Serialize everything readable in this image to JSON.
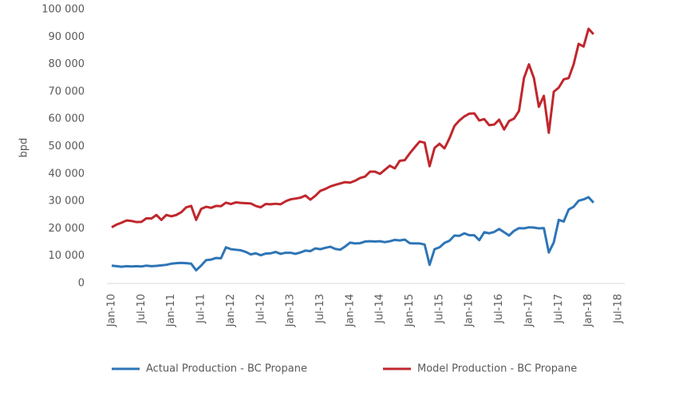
{
  "chart_data": {
    "type": "line",
    "y_label": "bpd",
    "categories": [
      "Jan-10",
      null,
      null,
      null,
      null,
      null,
      "Jul-10",
      null,
      null,
      null,
      null,
      null,
      "Jan-11",
      null,
      null,
      null,
      null,
      null,
      "Jul-11",
      null,
      null,
      null,
      null,
      null,
      "Jan-12",
      null,
      null,
      null,
      null,
      null,
      "Jul-12",
      null,
      null,
      null,
      null,
      null,
      "Jan-13",
      null,
      null,
      null,
      null,
      null,
      "Jul-13",
      null,
      null,
      null,
      null,
      null,
      "Jan-14",
      null,
      null,
      null,
      null,
      null,
      "Jul-14",
      null,
      null,
      null,
      null,
      null,
      "Jan-15",
      null,
      null,
      null,
      null,
      null,
      "Jul-15",
      null,
      null,
      null,
      null,
      null,
      "Jan-16",
      null,
      null,
      null,
      null,
      null,
      "Jul-16",
      null,
      null,
      null,
      null,
      null,
      "Jan-17",
      null,
      null,
      null,
      null,
      null,
      "Jul-17",
      null,
      null,
      null,
      null,
      null,
      "Jan-18",
      null,
      null,
      null,
      null,
      null,
      "Jul-18"
    ],
    "series": [
      {
        "name": "Actual Production - BC Propane",
        "color": "#2e75b6",
        "values": [
          6500,
          6300,
          6100,
          6300,
          6200,
          6300,
          6200,
          6500,
          6300,
          6400,
          6600,
          6800,
          7200,
          7400,
          7500,
          7400,
          7200,
          4800,
          6500,
          8500,
          8700,
          9300,
          9200,
          13200,
          12500,
          12300,
          12100,
          11500,
          10600,
          11000,
          10300,
          10900,
          11000,
          11500,
          10800,
          11200,
          11200,
          10800,
          11300,
          12000,
          11800,
          12800,
          12500,
          13000,
          13400,
          12600,
          12300,
          13500,
          14900,
          14600,
          14700,
          15300,
          15400,
          15300,
          15400,
          15100,
          15400,
          15900,
          15700,
          16000,
          14700,
          14600,
          14600,
          14200,
          6800,
          12500,
          13200,
          14800,
          15600,
          17500,
          17400,
          18300,
          17600,
          17600,
          15800,
          18700,
          18300,
          18800,
          19900,
          18700,
          17500,
          19200,
          20200,
          20100,
          20500,
          20400,
          20100,
          20200,
          11300,
          15000,
          23200,
          22600,
          27000,
          28000,
          30200,
          30700,
          31500,
          29500,
          null,
          null,
          null,
          null,
          null
        ]
      },
      {
        "name": "Model Production - BC Propane",
        "color": "#c0272d",
        "values": [
          20500,
          21500,
          22200,
          23000,
          22800,
          22400,
          22500,
          23800,
          23700,
          25000,
          23200,
          25000,
          24500,
          25000,
          26000,
          27800,
          28300,
          23200,
          27200,
          28000,
          27600,
          28300,
          28200,
          29500,
          29000,
          29600,
          29400,
          29300,
          29200,
          28300,
          27800,
          29000,
          28900,
          29100,
          28900,
          30000,
          30700,
          31000,
          31300,
          32100,
          30600,
          32000,
          33800,
          34500,
          35400,
          36000,
          36500,
          37000,
          36800,
          37500,
          38500,
          39000,
          40800,
          40800,
          40000,
          41500,
          43000,
          42000,
          44800,
          45000,
          47500,
          49700,
          51800,
          51400,
          42800,
          49500,
          51000,
          49300,
          53000,
          57500,
          59500,
          61000,
          62000,
          62100,
          59500,
          60000,
          57800,
          58000,
          59800,
          56200,
          59300,
          60200,
          63000,
          75000,
          80000,
          75000,
          64500,
          68500,
          55000,
          70000,
          71500,
          74500,
          75000,
          80000,
          87500,
          86500,
          93000,
          91000,
          null,
          null,
          null,
          null,
          null
        ]
      }
    ],
    "ylim": [
      0,
      100000
    ],
    "yticks": [
      0,
      {
        "value": 10000,
        "label": "10 000"
      },
      {
        "value": 20000,
        "label": "20 000"
      },
      {
        "value": 30000,
        "label": "30 000"
      },
      {
        "value": 40000,
        "label": "40 000"
      },
      {
        "value": 50000,
        "label": "50 000"
      },
      {
        "value": 60000,
        "label": "60 000"
      },
      {
        "value": 70000,
        "label": "70 000"
      },
      {
        "value": 80000,
        "label": "80 000"
      },
      {
        "value": 90000,
        "label": "90 000"
      },
      {
        "value": 100000,
        "label": "100 000"
      }
    ],
    "legend": "bottom"
  }
}
